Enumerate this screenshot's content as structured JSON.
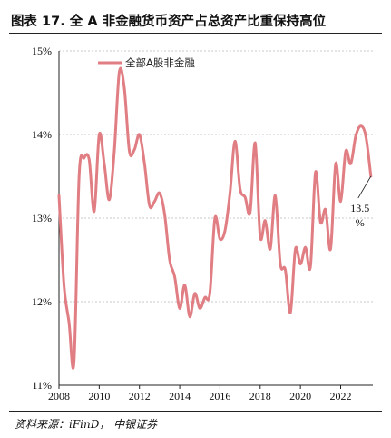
{
  "header": {
    "title": "图表 17.  全 A 非金融货币资产占总资产比重保持高位"
  },
  "footer": {
    "source": "资料来源：iFinD， 中银证券"
  },
  "chart_data": {
    "type": "line",
    "title": "图表 17.  全 A 非金融货币资产占总资产比重保持高位",
    "xlabel": "",
    "ylabel": "",
    "xlim": [
      2008,
      2023.6
    ],
    "ylim": [
      11,
      15
    ],
    "x_ticks": [
      2008,
      2010,
      2012,
      2014,
      2016,
      2018,
      2020,
      2022
    ],
    "y_ticks": [
      {
        "value": 11,
        "label": "11%"
      },
      {
        "value": 12,
        "label": "12%"
      },
      {
        "value": 13,
        "label": "13%"
      },
      {
        "value": 14,
        "label": "14%"
      },
      {
        "value": 15,
        "label": "15%"
      }
    ],
    "grid": "horizontal",
    "legend_position": "top-left",
    "color": "#e07e84",
    "series": [
      {
        "name": "全部A股非金融",
        "x": [
          2008.0,
          2008.25,
          2008.5,
          2008.75,
          2009.0,
          2009.25,
          2009.5,
          2009.75,
          2010.0,
          2010.25,
          2010.5,
          2010.75,
          2011.0,
          2011.25,
          2011.5,
          2011.75,
          2012.0,
          2012.25,
          2012.5,
          2012.75,
          2013.0,
          2013.25,
          2013.5,
          2013.75,
          2014.0,
          2014.25,
          2014.5,
          2014.75,
          2015.0,
          2015.25,
          2015.5,
          2015.75,
          2016.0,
          2016.25,
          2016.5,
          2016.75,
          2017.0,
          2017.25,
          2017.5,
          2017.75,
          2018.0,
          2018.25,
          2018.5,
          2018.75,
          2019.0,
          2019.25,
          2019.5,
          2019.75,
          2020.0,
          2020.25,
          2020.5,
          2020.75,
          2021.0,
          2021.25,
          2021.5,
          2021.75,
          2022.0,
          2022.25,
          2022.5,
          2022.75,
          2023.0,
          2023.25,
          2023.5
        ],
        "values": [
          13.27,
          12.2,
          11.75,
          11.28,
          13.5,
          13.72,
          13.7,
          13.08,
          14.0,
          13.65,
          13.22,
          13.8,
          14.75,
          14.55,
          13.8,
          13.82,
          14.0,
          13.65,
          13.15,
          13.2,
          13.3,
          13.05,
          12.5,
          12.3,
          11.92,
          12.2,
          11.82,
          12.1,
          11.92,
          12.05,
          12.1,
          13.0,
          12.75,
          12.85,
          13.3,
          13.92,
          13.35,
          13.25,
          13.07,
          13.9,
          12.78,
          12.97,
          12.63,
          13.27,
          12.45,
          12.38,
          11.87,
          12.63,
          12.45,
          12.65,
          12.42,
          13.55,
          12.95,
          13.1,
          12.63,
          13.65,
          13.2,
          13.8,
          13.65,
          13.98,
          14.1,
          13.98,
          13.5
        ]
      }
    ],
    "annotations": [
      {
        "x": 2023.5,
        "y": 13.5,
        "text": "13.5",
        "text2": "%"
      }
    ]
  }
}
